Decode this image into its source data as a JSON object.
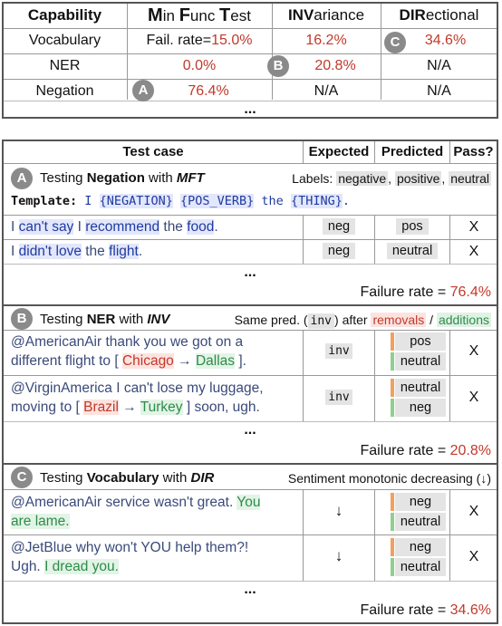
{
  "summary": {
    "headers": [
      {
        "initial": "M",
        "rest": "in ",
        "initial2": "F",
        "rest2": "unc ",
        "initial3": "T",
        "rest3": "est"
      }
    ],
    "col0": "Capability",
    "col1_parts": [
      "M",
      "in ",
      "F",
      "unc ",
      "T",
      "est"
    ],
    "col2_parts": [
      "INV",
      "ariance"
    ],
    "col3_parts": [
      "DIR",
      "ectional"
    ],
    "rows": [
      {
        "capability": "Vocabulary",
        "mft_prefix": "Fail. rate=",
        "mft": "15.0%",
        "inv": "16.2%",
        "dir": "34.6%"
      },
      {
        "capability": "NER",
        "mft_prefix": "",
        "mft": "0.0%",
        "inv": "20.8%",
        "dir": "N/A"
      },
      {
        "capability": "Negation",
        "mft_prefix": "",
        "mft": "76.4%",
        "inv": "N/A",
        "dir": "N/A"
      }
    ],
    "dots": "..."
  },
  "badges": {
    "a": "A",
    "b": "B",
    "c": "C"
  },
  "detail": {
    "headers": {
      "test_case": "Test case",
      "expected": "Expected",
      "predicted": "Predicted",
      "pass": "Pass?"
    },
    "sectionA": {
      "title_pre": "Testing ",
      "title_cap": "Negation",
      "title_mid": " with ",
      "title_type": "MFT",
      "labels_pre": "Labels: ",
      "labels": [
        "negative",
        "positive",
        "neutral"
      ],
      "template_kw": "Template:",
      "template_tokens": [
        "I",
        "{NEGATION}",
        "{POS_VERB}",
        "the",
        "{THING}",
        "."
      ],
      "examples": [
        {
          "parts": [
            "I ",
            "can't say",
            " I ",
            "recommend",
            " the ",
            "food",
            "."
          ],
          "expected": "neg",
          "predicted": "pos",
          "pass": "X"
        },
        {
          "parts": [
            "I ",
            "didn't love",
            " the ",
            "flight",
            "."
          ],
          "expected": "neg",
          "predicted": "neutral",
          "pass": "X"
        }
      ],
      "dots": "...",
      "failure_pre": "Failure rate = ",
      "failure": "76.4%"
    },
    "sectionB": {
      "title_pre": "Testing ",
      "title_cap": "NER",
      "title_mid": " with ",
      "title_type": "INV",
      "note_pre": "Same pred. (",
      "note_code": "inv",
      "note_mid": ") after ",
      "note_removals": "removals",
      "note_sep": " / ",
      "note_additions": "additions",
      "examples": [
        {
          "line1": "@AmericanAir thank you we got on a",
          "line2_pre": "different flight to [ ",
          "from": "Chicago",
          "arrow": "→",
          "to": "Dallas",
          "line2_post": " ].",
          "expected": "inv",
          "pred_top": "pos",
          "pred_bottom": "neutral",
          "pass": "X"
        },
        {
          "line1": "@VirginAmerica I can't lose my luggage,",
          "line2_pre": "moving to [ ",
          "from": "Brazil",
          "arrow": "→",
          "to": "Turkey",
          "line2_post": " ] soon, ugh.",
          "expected": "inv",
          "pred_top": "neutral",
          "pred_bottom": "neg",
          "pass": "X"
        }
      ],
      "dots": "...",
      "failure_pre": "Failure rate = ",
      "failure": "20.8%"
    },
    "sectionC": {
      "title_pre": "Testing ",
      "title_cap": "Vocabulary",
      "title_mid": " with ",
      "title_type": "DIR",
      "note": "Sentiment monotonic decreasing (↓)",
      "examples": [
        {
          "line1_pre": "@AmericanAir service wasn't great. ",
          "line1_hl": "You",
          "line2_hl": "are lame.",
          "line2_post": "",
          "expected": "↓",
          "pred_top": "neg",
          "pred_bottom": "neutral",
          "pass": "X"
        },
        {
          "line1_pre": "@JetBlue why won't YOU help them?!",
          "line1_hl": "",
          "line2_pre": "Ugh. ",
          "line2_hl": "I dread you.",
          "expected": "↓",
          "pred_top": "neg",
          "pred_bottom": "neutral",
          "pass": "X"
        }
      ],
      "dots": "...",
      "failure_pre": "Failure rate = ",
      "failure": "34.6%"
    }
  },
  "colors": {
    "red": "#c0392b",
    "green": "#2e8b4a",
    "blue": "#1f3aa0",
    "orange_bar": "#f0a060",
    "green_bar": "#8fcf8f"
  }
}
